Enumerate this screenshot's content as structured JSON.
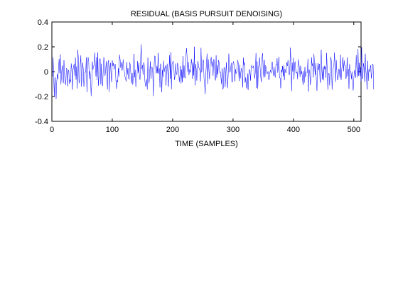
{
  "figure": {
    "background": "#ffffff"
  },
  "chart_data": {
    "type": "line",
    "title": "RESIDUAL (BASIS PURSUIT DENOISING)",
    "xlabel": "TIME (SAMPLES)",
    "ylabel": "",
    "xlim": [
      0,
      512
    ],
    "ylim": [
      -0.4,
      0.4
    ],
    "xticks": [
      0,
      100,
      200,
      300,
      400,
      500
    ],
    "yticks": [
      -0.4,
      -0.2,
      0,
      0.2,
      0.4
    ],
    "xtick_labels": [
      "0",
      "100",
      "200",
      "300",
      "400",
      "500"
    ],
    "ytick_labels": [
      "-0.4",
      "-0.2",
      "0",
      "0.2",
      "0.4"
    ],
    "grid": false,
    "series_color": "#0000ff",
    "series": [
      {
        "values": [
          -0.037,
          0.117,
          -0.041,
          -0.197,
          -0.043,
          -0.073,
          -0.219,
          -0.085,
          -0.018,
          -0.059,
          0.028,
          0.103,
          -0.012,
          0.138,
          -0.102,
          -0.022,
          0.049,
          -0.05,
          -0.092,
          0.092,
          -0.026,
          -0.093,
          -0.106,
          0.027,
          0.021,
          -0.117,
          0.002,
          0.013,
          -0.097,
          -0.063,
          -0.085,
          0.066,
          0.025,
          -0.144,
          0.009,
          0.05,
          0.06,
          -0.035,
          0.113,
          -0.064,
          0.042,
          -0.135,
          0.176,
          0.098,
          -0.092,
          -0.081,
          0.062,
          0.131,
          -0.119,
          -0.037,
          0.073,
          0.021,
          -0.12,
          -0.075,
          -0.002,
          -0.006,
          0.115,
          -0.166,
          -0.015,
          0.116,
          0.084,
          -0.059,
          0.004,
          -0.044,
          -0.196,
          -0.103,
          0.081,
          0.015,
          0.047,
          0.047,
          0.153,
          0.051,
          -0.038,
          0.115,
          -0.068,
          0.154,
          -0.113,
          -0.041,
          0.104,
          0.104,
          -0.103,
          0.064,
          -0.089,
          -0.115,
          0.001,
          0.116,
          0.071,
          -0.034,
          0.007,
          0.083,
          -0.015,
          -0.142,
          0.076,
          0.092,
          -0.162,
          0.024,
          0.07,
          -0.021,
          -0.083,
          0.091,
          0.045,
          0.069,
          0.018,
          0.044,
          0.062,
          -0.07,
          -0.137,
          -0.069,
          -0.084,
          0.027,
          -0.039,
          0.137,
          0.099,
          0.031,
          0.075,
          0.008,
          0.025,
          0.099,
          0.019,
          0.001,
          -0.039,
          -0.058,
          -0.078,
          0.078,
          -0.024,
          0.028,
          -0.048,
          -0.062,
          0.075,
          0.047,
          -0.037,
          -0.094,
          -0.011,
          -0.106,
          -0.026,
          0.143,
          -0.047,
          0.015,
          -0.122,
          -0.039,
          -0.032,
          0.085,
          -0.009,
          0.072,
          -0.041,
          -0.065,
          0.114,
          0.22,
          0.022,
          0.052,
          -0.026,
          0.075,
          0.052,
          -0.075,
          -0.119,
          -0.104,
          -0.061,
          -0.144,
          0.112,
          -0.058,
          -0.094,
          -0.005,
          0.082,
          -0.056,
          0.037,
          0.038,
          -0.005,
          -0.196,
          -0.014,
          0.127,
          0.124,
          0.018,
          -0.014,
          0.047,
          -0.012,
          0.15,
          -0.016,
          0.026,
          -0.127,
          0.064,
          0.004,
          -0.166,
          0.014,
          -0.043,
          0.087,
          -0.002,
          0.03,
          0.05,
          -0.111,
          0.02,
          0.064,
          -0.011,
          -0.121,
          0.016,
          0.133,
          -0.056,
          0.156,
          -0.142,
          0.062,
          0.074,
          0.086,
          0.026,
          -0.066,
          -0.035,
          0.065,
          -0.015,
          -0.025,
          0.07,
          0.049,
          0.011,
          -0.084,
          -0.034,
          0.046,
          -0.095,
          0.017,
          -0.086,
          0.125,
          -0.051,
          0.049,
          -0.049,
          -0.053,
          0.133,
          0.189,
          0.112,
          -0.002,
          0.078,
          -0.028,
          0.019,
          -0.006,
          -0.001,
          0.103,
          0.062,
          -0.057,
          0.076,
          -0.031,
          0.201,
          -0.11,
          0.062,
          0.025,
          -0.072,
          0.035,
          0.085,
          0.03,
          0.03,
          0.009,
          -0.078,
          0.192,
          -0.006,
          0.028,
          0.095,
          0.094,
          -0.056,
          -0.116,
          -0.18,
          -0.011,
          0.073,
          0.145,
          -0.098,
          0.099,
          0.017,
          -0.06,
          0.04,
          0.096,
          0.117,
          0.042,
          0.083,
          -0.033,
          0.101,
          0.086,
          -0.045,
          -0.071,
          0.131,
          -0.049,
          0.054,
          -0.023,
          0.092,
          0.073,
          -0.009,
          -0.002,
          -0.05,
          -0.101,
          0.026,
          -0.143,
          -0.13,
          0.032,
          0.034,
          -0.124,
          -0.012,
          0.075,
          -0.058,
          -0.133,
          -0.024,
          0.144,
          0.01,
          -0.005,
          0.016,
          0.07,
          -0.082,
          -0.084,
          0.07,
          0.083,
          0.026,
          -0.078,
          0.022,
          -0.017,
          -0.004,
          0.042,
          0.094,
          0.05,
          -0.075,
          0.056,
          -0.054,
          -0.001,
          0.029,
          -0.014,
          -0.127,
          0.113,
          0.049,
          0.074,
          -0.088,
          -0.047,
          -0.123,
          -0.136,
          -0.014,
          -0.148,
          -0.023,
          0.019,
          0.004,
          -0.072,
          0.033,
          0.053,
          0.029,
          0.032,
          0.047,
          -0.016,
          -0.054,
          0.003,
          0.15,
          -0.131,
          0.082,
          -0.138,
          0.037,
          0.057,
          0.115,
          0.02,
          -0.05,
          -0.085,
          0.115,
          0.148,
          0.013,
          -0.049,
          0.095,
          -0.041,
          0.051,
          0.016,
          -0.015,
          -0.016,
          0.003,
          -0.065,
          -0.062,
          -0.004,
          0.012,
          -0.014,
          0.062,
          0.079,
          0.011,
          -0.034,
          0.039,
          -0.023,
          -0.047,
          0.058,
          0.052,
          0.107,
          -0.009,
          0.045,
          0.118,
          -0.051,
          -0.051,
          -0.134,
          0.016,
          -0.005,
          0.046,
          -0.037,
          0.052,
          -0.069,
          0.022,
          -0.007,
          -0.01,
          0.073,
          0.045,
          0.093,
          0.05,
          -0.028,
          0.002,
          0.193,
          0.074,
          -0.157,
          0.072,
          0.002,
          0.111,
          -0.061,
          0.069,
          0.081,
          -0.005,
          -0.013,
          -0.001,
          -0.061,
          0.099,
          0.066,
          0.03,
          -0.042,
          0.047,
          -0.02,
          0.005,
          -0.057,
          -0.107,
          0.004,
          -0.089,
          0.037,
          -0.044,
          -0.004,
          -0.003,
          -0.008,
          0.104,
          -0.16,
          0.018,
          -0.005,
          -0.107,
          -0.06,
          0.115,
          0.047,
          0.066,
          -0.047,
          0.144,
          0.053,
          -0.028,
          0.072,
          -0.074,
          -0.153,
          0.042,
          0.069,
          0.013,
          0.063,
          -0.064,
          -0.089,
          0.176,
          0.016,
          -0.063,
          0.038,
          -0.07,
          0.048,
          0.021,
          0.042,
          -0.052,
          0.151,
          0.016,
          -0.147,
          -0.014,
          -0.015,
          -0.111,
          0.039,
          0.117,
          0.078,
          -0.146,
          -0.054,
          0.034,
          0.038,
          0.154,
          0.043,
          -0.081,
          0.092,
          -0.005,
          -0.064,
          -0.066,
          0.023,
          0.014,
          -0.05,
          0.136,
          -0.067,
          0.013,
          0.071,
          0.116,
          0.003,
          0.09,
          0.048,
          0.049,
          -0.058,
          -0.035,
          0.114,
          -0.037,
          0.021,
          -0.137,
          0.06,
          0.005,
          0.003,
          -0.059,
          0.001,
          -0.103,
          -0.151,
          -0.058,
          0.012,
          0.004,
          -0.05,
          0.134,
          0.027,
          -0.045,
          0.183,
          -0.033,
          0.07,
          -0.035,
          0.036,
          -0.076,
          0.197,
          -0.059,
          -0.041,
          0.067,
          0.039,
          -0.08,
          0.144,
          0.008,
          -0.045,
          -0.143,
          0.088,
          -0.073,
          0.019,
          -0.002,
          0.031,
          0.051,
          -0.055,
          -0.005,
          0.063,
          0.057,
          -0.143
        ]
      }
    ]
  }
}
